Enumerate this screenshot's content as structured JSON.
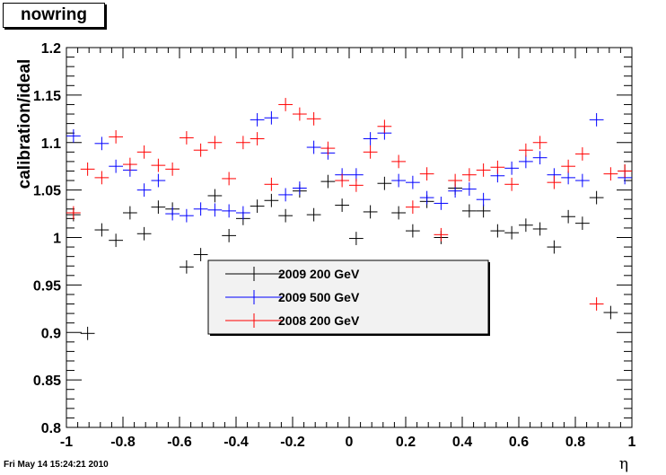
{
  "canvas_title": "nowring",
  "footer_timestamp": "Fri May 14 15:24:21 2010",
  "chart_data": {
    "type": "scatter",
    "title": "nowring",
    "xlabel": "η",
    "ylabel": "calibration/ideal",
    "xlim": [
      -1,
      1
    ],
    "ylim": [
      0.8,
      1.2
    ],
    "x_ticks": [
      "-1",
      "-0.8",
      "-0.6",
      "-0.4",
      "-0.2",
      "0",
      "0.2",
      "0.4",
      "0.6",
      "0.8",
      "1"
    ],
    "y_ticks": [
      "0.8",
      "0.85",
      "0.9",
      "0.95",
      "1",
      "1.05",
      "1.1",
      "1.15",
      "1.2"
    ],
    "grid": false,
    "legend_position": "center-left",
    "x_error": 0.025,
    "y_error": 0.007,
    "series": [
      {
        "name": "2009 200 GeV",
        "color": "#000000",
        "x": [
          -0.975,
          -0.925,
          -0.875,
          -0.825,
          -0.775,
          -0.725,
          -0.675,
          -0.625,
          -0.575,
          -0.525,
          -0.475,
          -0.425,
          -0.375,
          -0.325,
          -0.275,
          -0.225,
          -0.175,
          -0.125,
          -0.075,
          -0.025,
          0.025,
          0.075,
          0.125,
          0.175,
          0.225,
          0.275,
          0.325,
          0.375,
          0.425,
          0.475,
          0.525,
          0.575,
          0.625,
          0.675,
          0.725,
          0.775,
          0.825,
          0.875,
          0.925,
          0.975
        ],
        "y": [
          1.024,
          0.899,
          1.008,
          0.997,
          1.026,
          1.004,
          1.032,
          1.03,
          0.969,
          0.982,
          1.044,
          1.002,
          1.02,
          1.033,
          1.039,
          1.023,
          1.049,
          1.024,
          1.059,
          1.034,
          0.999,
          1.027,
          1.057,
          1.026,
          1.007,
          1.038,
          1.0,
          1.052,
          1.028,
          1.028,
          1.007,
          1.005,
          1.013,
          1.009,
          0.99,
          1.022,
          1.015,
          1.042,
          0.921,
          1.07
        ]
      },
      {
        "name": "2009 500 GeV",
        "color": "#0000ff",
        "x": [
          -0.975,
          -0.875,
          -0.825,
          -0.775,
          -0.725,
          -0.675,
          -0.625,
          -0.575,
          -0.525,
          -0.475,
          -0.425,
          -0.375,
          -0.325,
          -0.275,
          -0.225,
          -0.175,
          -0.125,
          -0.075,
          -0.025,
          0.025,
          0.075,
          0.125,
          0.175,
          0.225,
          0.275,
          0.325,
          0.375,
          0.425,
          0.475,
          0.525,
          0.575,
          0.625,
          0.675,
          0.725,
          0.775,
          0.825,
          0.875,
          0.975
        ],
        "y": [
          1.107,
          1.099,
          1.075,
          1.071,
          1.05,
          1.06,
          1.025,
          1.023,
          1.03,
          1.029,
          1.028,
          1.026,
          1.124,
          1.126,
          1.045,
          1.052,
          1.095,
          1.089,
          1.066,
          1.066,
          1.104,
          1.11,
          1.06,
          1.058,
          1.042,
          1.036,
          1.049,
          1.051,
          1.04,
          1.065,
          1.073,
          1.08,
          1.084,
          1.066,
          1.063,
          1.06,
          1.124,
          1.063
        ]
      },
      {
        "name": "2008 200 GeV",
        "color": "#ff0000",
        "x": [
          -0.975,
          -0.925,
          -0.875,
          -0.825,
          -0.775,
          -0.725,
          -0.675,
          -0.625,
          -0.575,
          -0.525,
          -0.475,
          -0.425,
          -0.375,
          -0.325,
          -0.275,
          -0.225,
          -0.175,
          -0.125,
          -0.075,
          -0.025,
          0.025,
          0.075,
          0.125,
          0.175,
          0.225,
          0.275,
          0.325,
          0.375,
          0.425,
          0.475,
          0.525,
          0.575,
          0.625,
          0.675,
          0.725,
          0.775,
          0.825,
          0.875,
          0.925,
          0.975
        ],
        "y": [
          1.026,
          1.072,
          1.063,
          1.106,
          1.077,
          1.09,
          1.076,
          1.072,
          1.105,
          1.092,
          1.1,
          1.062,
          1.1,
          1.104,
          1.056,
          1.14,
          1.13,
          1.125,
          1.094,
          1.06,
          1.055,
          1.09,
          1.117,
          1.08,
          1.032,
          1.067,
          1.003,
          1.06,
          1.066,
          1.071,
          1.074,
          1.056,
          1.092,
          1.1,
          1.058,
          1.075,
          1.088,
          0.93,
          1.067,
          1.07
        ]
      }
    ]
  }
}
